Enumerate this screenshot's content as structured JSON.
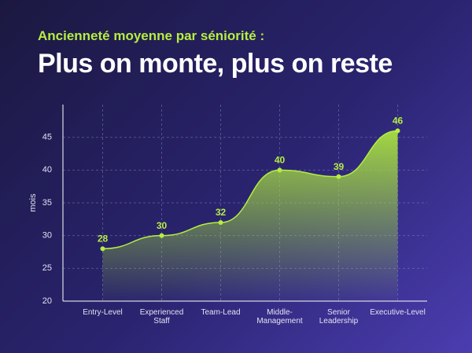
{
  "chart_data": {
    "type": "area",
    "subtitle": "Ancienneté moyenne par séniorité :",
    "title": "Plus on monte, plus on reste",
    "y_label": "mois",
    "categories": [
      "Entry-Level",
      "Experienced Staff",
      "Team-Lead",
      "Middle-Management",
      "Senior Leadership",
      "Executive-Level"
    ],
    "values": [
      28,
      30,
      32,
      40,
      39,
      46
    ],
    "color": "#b6ee3f",
    "ylim": [
      20,
      50
    ],
    "yticks": [
      20,
      25,
      30,
      35,
      40,
      45
    ],
    "grid": true
  }
}
